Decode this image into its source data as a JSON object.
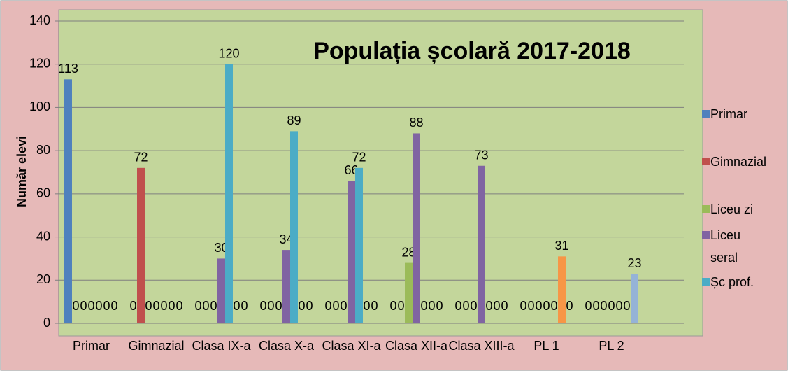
{
  "chart_data": {
    "type": "bar",
    "title": "Populația școlară 2017-2018",
    "ylabel": "Număr elevi",
    "categories": [
      "Primar",
      "Gimnazial",
      "Clasa IX-a",
      "Clasa X-a",
      "Clasa XI-a",
      "Clasa XII-a",
      "Clasa XIII-a",
      "PL 1",
      "PL 2"
    ],
    "series": [
      {
        "name": "Primar",
        "color": "#4f81bd",
        "values": [
          113,
          0,
          0,
          0,
          0,
          0,
          0,
          0,
          0
        ]
      },
      {
        "name": "Gimnazial",
        "color": "#c0504d",
        "values": [
          0,
          72,
          0,
          0,
          0,
          0,
          0,
          0,
          0
        ]
      },
      {
        "name": "Liceu zi",
        "color": "#9bbb59",
        "values": [
          0,
          0,
          0,
          0,
          0,
          28,
          0,
          0,
          0
        ]
      },
      {
        "name": "Liceu seral",
        "color": "#8064a2",
        "values": [
          0,
          0,
          30,
          34,
          66,
          88,
          73,
          0,
          0
        ]
      },
      {
        "name": "Șc prof.",
        "color": "#4bacc6",
        "values": [
          0,
          0,
          120,
          89,
          72,
          0,
          0,
          0,
          0
        ]
      },
      {
        "color": "#f79646",
        "values": [
          0,
          0,
          0,
          0,
          0,
          0,
          0,
          31,
          0
        ]
      },
      {
        "color": "#95b3d7",
        "values": [
          0,
          0,
          0,
          0,
          0,
          0,
          0,
          0,
          23
        ]
      }
    ],
    "ylim": [
      0,
      140
    ],
    "yticks": [
      0,
      20,
      40,
      60,
      80,
      100,
      120,
      140
    ],
    "grid": true,
    "legend": "right"
  }
}
